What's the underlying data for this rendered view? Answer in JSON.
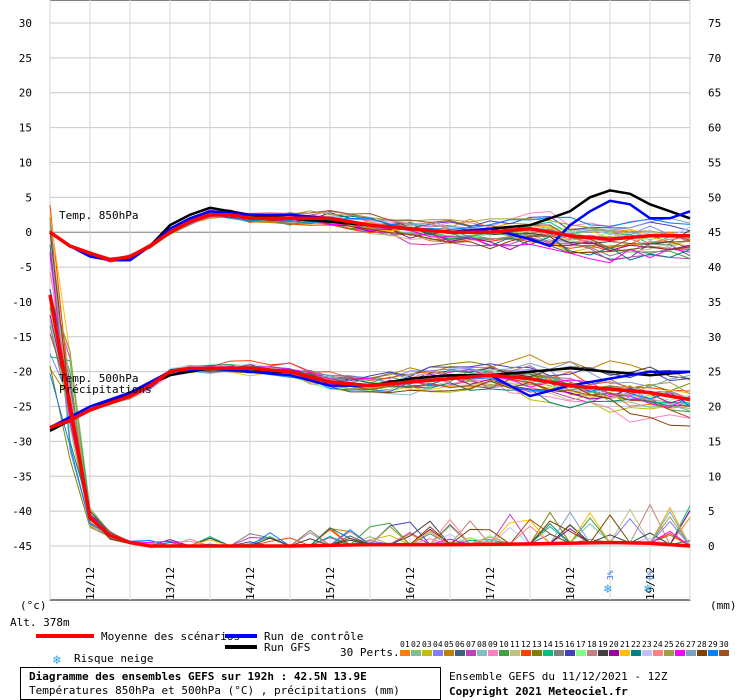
{
  "chart_data": {
    "type": "line",
    "title": "Diagramme des ensembles GEFS sur 192h : 42.5N 13.9E",
    "subtitle": "Températures 850hPa et 500hPa (°C) , précipitations (mm)",
    "left_axis": {
      "unit_label": "(°c)",
      "ticks": [
        30,
        25,
        20,
        15,
        10,
        5,
        0,
        -5,
        -10,
        -15,
        -20,
        -25,
        -30,
        -35,
        -40,
        -45
      ],
      "range": [
        -45,
        30
      ]
    },
    "right_axis": {
      "unit_label": "(mm)",
      "ticks": [
        75,
        70,
        65,
        60,
        55,
        50,
        45,
        40,
        35,
        30,
        25,
        20,
        15,
        10,
        5,
        0
      ],
      "range": [
        0,
        75
      ]
    },
    "x_axis": {
      "ticks": [
        "12/12",
        "13/12",
        "14/12",
        "15/12",
        "16/12",
        "17/12",
        "18/12",
        "19/12"
      ],
      "hour_range": [
        0,
        192
      ],
      "tick_hours": [
        12,
        36,
        60,
        84,
        108,
        132,
        156,
        180
      ]
    },
    "altitude": "Alt. 378m",
    "panel_labels": {
      "t850": "Temp. 850hPa",
      "t500": "Temp. 500hPa",
      "precip": "Précipitations"
    },
    "series": [
      {
        "name": "Moyenne des scénarios",
        "color": "#ff0000",
        "t850_x": [
          0,
          6,
          12,
          18,
          24,
          30,
          36,
          42,
          48,
          54,
          60,
          72,
          84,
          96,
          108,
          120,
          132,
          144,
          156,
          168,
          180,
          192
        ],
        "t850_y": [
          0,
          -2,
          -3,
          -4,
          -3.5,
          -2,
          0,
          1.5,
          2.5,
          2.5,
          2,
          2,
          2,
          1,
          0.5,
          0,
          0,
          0.5,
          -0.5,
          -1,
          -0.5,
          -0.5
        ],
        "t500_x": [
          0,
          6,
          12,
          18,
          24,
          30,
          36,
          42,
          48,
          60,
          72,
          84,
          96,
          108,
          120,
          132,
          144,
          156,
          168,
          180,
          192
        ],
        "t500_y": [
          -28,
          -27,
          -25.5,
          -24.5,
          -23.5,
          -22,
          -20,
          -19.5,
          -19.5,
          -19.5,
          -20,
          -21.5,
          -22,
          -21.5,
          -21,
          -20.5,
          -21,
          -22,
          -22.5,
          -23,
          -24
        ]
      },
      {
        "name": "Run de contrôle",
        "color": "#0000ff",
        "t850_x": [
          0,
          6,
          12,
          18,
          24,
          30,
          36,
          42,
          48,
          60,
          72,
          84,
          96,
          108,
          120,
          132,
          144,
          150,
          156,
          162,
          168,
          174,
          180,
          186,
          192
        ],
        "t850_y": [
          0,
          -2,
          -3.5,
          -4,
          -4,
          -2,
          0.5,
          2,
          3,
          2.5,
          2.5,
          2,
          1,
          0.5,
          0,
          0.5,
          -1,
          -2,
          1,
          3,
          4.5,
          4,
          2,
          2,
          3
        ],
        "t500_x": [
          0,
          12,
          24,
          36,
          48,
          60,
          72,
          84,
          96,
          108,
          120,
          132,
          144,
          156,
          168,
          180,
          192
        ],
        "t500_y": [
          -28,
          -25,
          -23,
          -20,
          -19.5,
          -20,
          -20.5,
          -22,
          -22,
          -21.5,
          -21,
          -20.5,
          -23.5,
          -22,
          -21,
          -20,
          -20
        ]
      },
      {
        "name": "Run GFS",
        "color": "#000000",
        "t850_x": [
          0,
          6,
          12,
          18,
          24,
          30,
          36,
          42,
          48,
          60,
          72,
          84,
          96,
          108,
          120,
          132,
          144,
          150,
          156,
          162,
          168,
          174,
          180,
          186,
          192
        ],
        "t850_y": [
          0,
          -2,
          -3,
          -4,
          -4,
          -2,
          1,
          2.5,
          3.5,
          2.5,
          2,
          1.5,
          1,
          0.5,
          0,
          0.5,
          1,
          2,
          3,
          5,
          6,
          5.5,
          4,
          3,
          2
        ],
        "t500_x": [
          0,
          12,
          24,
          36,
          48,
          60,
          72,
          84,
          96,
          108,
          120,
          132,
          144,
          156,
          168,
          180,
          192
        ],
        "t500_y": [
          -28.5,
          -25.5,
          -23,
          -20.5,
          -19.5,
          -20,
          -20,
          -21.5,
          -22,
          -21,
          -20.5,
          -20.5,
          -20,
          -19.5,
          -20,
          -20.5,
          -20
        ]
      }
    ],
    "precip_mean": {
      "x": [
        0,
        6,
        12,
        18,
        24,
        30,
        36,
        48,
        72,
        96,
        120,
        144,
        168,
        180,
        192
      ],
      "y": [
        36,
        20,
        4,
        1.5,
        0.5,
        0,
        0,
        0,
        0,
        0.2,
        0.2,
        0.3,
        0.5,
        0.4,
        0
      ]
    },
    "snow_risk": [
      {
        "hour": 168,
        "label": "3%"
      },
      {
        "hour": 180,
        "label": "6%"
      }
    ],
    "legend": {
      "mean": "Moyenne des scénarios",
      "control": "Run de contrôle",
      "gfs": "Run GFS",
      "snow": "Risque neige",
      "perts_label": "30 Perts.",
      "perts": [
        "01",
        "02",
        "03",
        "04",
        "05",
        "06",
        "07",
        "08",
        "09",
        "10",
        "11",
        "12",
        "13",
        "14",
        "15",
        "16",
        "17",
        "18",
        "19",
        "20",
        "21",
        "22",
        "23",
        "24",
        "25",
        "26",
        "27",
        "28",
        "29",
        "30"
      ],
      "pert_colors": [
        "#ff8000",
        "#80c080",
        "#c0c000",
        "#8080ff",
        "#c08000",
        "#406080",
        "#c040c0",
        "#80c0c0",
        "#ff80c0",
        "#40a040",
        "#c0c080",
        "#ff4000",
        "#808000",
        "#00c080",
        "#808080",
        "#4040c0",
        "#80ff80",
        "#c08080",
        "#404040",
        "#a000a0",
        "#ffc000",
        "#008080",
        "#c0c0ff",
        "#ff8080",
        "#a0a040",
        "#ff00ff",
        "#80a0c0",
        "#804000",
        "#0080ff",
        "#a05020"
      ]
    },
    "footer": {
      "title": "Diagramme des ensembles GEFS sur 192h : 42.5N 13.9E",
      "subtitle": "Températures 850hPa et 500hPa (°C) , précipitations (mm)",
      "run": "Ensemble GEFS du 11/12/2021 - 12Z",
      "copyright": "Copyright 2021 Meteociel.fr"
    }
  }
}
